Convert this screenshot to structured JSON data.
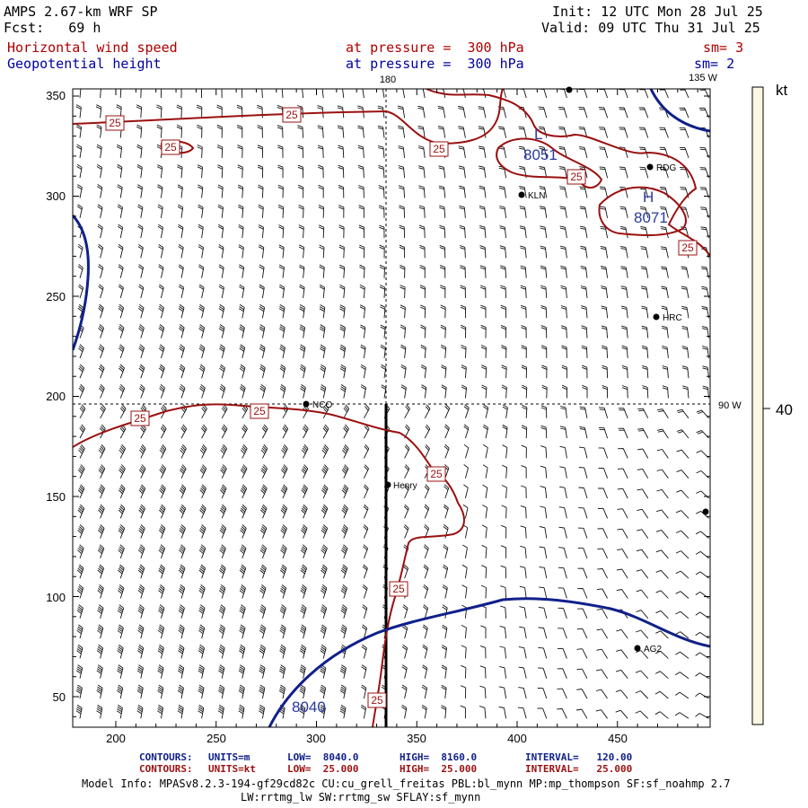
{
  "header": {
    "model_title": "AMPS 2.67-km WRF SP",
    "forecast": "Fcst:   69 h",
    "init": "Init: 12 UTC Mon 28 Jul 25",
    "valid": "Valid: 09 UTC Thu 31 Jul 25",
    "field1_name": "Horizontal wind speed",
    "field1_level": "at pressure =  300 hPa",
    "field1_sm": "sm= 3",
    "field2_name": "Geopotential height",
    "field2_level": "at pressure =  300 hPa",
    "field2_sm": "sm= 2"
  },
  "map": {
    "x_ticks": [
      "200",
      "250",
      "300",
      "350",
      "400",
      "450"
    ],
    "y_ticks": [
      "350",
      "300",
      "250",
      "200",
      "150",
      "100",
      "50"
    ],
    "lon_labels": {
      "top_180": "180",
      "top_135w": "135 W",
      "right_90w": "90 W"
    },
    "stations": [
      {
        "name": "RDG"
      },
      {
        "name": "KLN"
      },
      {
        "name": "HRC"
      },
      {
        "name": "NCO"
      },
      {
        "name": "Henry"
      },
      {
        "name": "AG2"
      }
    ],
    "height_labels": {
      "low_center": "L",
      "low_value": "8051",
      "high_center": "H",
      "high_value": "8071",
      "bottom_value": "8040"
    },
    "speed_label": "25",
    "colorbar": {
      "unit": "kt",
      "value": "40"
    }
  },
  "footer": {
    "line1_label": "CONTOURS:",
    "line1_units": "UNITS=m",
    "line1_low": "LOW=  8040.0",
    "line1_high": "HIGH=  8160.0",
    "line1_interval": "INTERVAL=   120.00",
    "line2_label": "CONTOURS:",
    "line2_units": "UNITS=kt",
    "line2_low": "LOW=  25.000",
    "line2_high": "HIGH=  25.000",
    "line2_interval": "INTERVAL=   25.000",
    "model_info": "Model Info: MPASv8.2.3-194-gf29cd82c CU:cu_grell_freitas PBL:bl_mynn MP:mp_thompson SF:sf_noahmp 2.7",
    "model_info2": "LW:rrtmg_lw SW:rrtmg_sw SFLAY:sf_mynn"
  },
  "colors": {
    "contour_speed": "#9a1010",
    "contour_height": "#10208a",
    "colorbar_fill": "#fbf7e4"
  }
}
